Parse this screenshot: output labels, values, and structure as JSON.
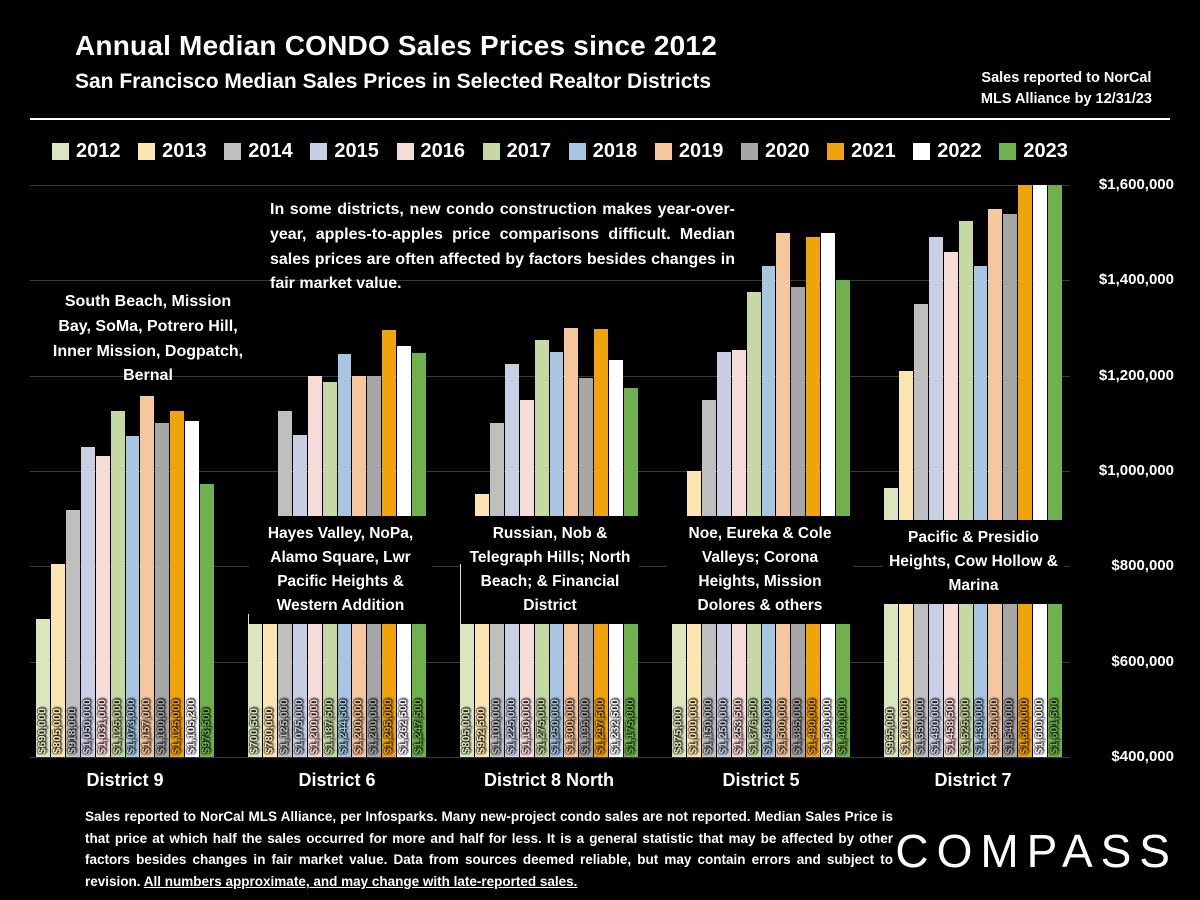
{
  "header": {
    "title": "Annual Median CONDO Sales Prices since 2012",
    "subtitle": "San Francisco Median Sales Prices in Selected Realtor Districts",
    "note_line1": "Sales reported to NorCal",
    "note_line2": "MLS Alliance by 12/31/23"
  },
  "chart_data": {
    "type": "bar",
    "title": "Annual Median CONDO Sales Prices since 2012",
    "subtitle": "San Francisco Median Sales Prices in Selected Realtor Districts",
    "ylim": [
      400000,
      1600000
    ],
    "ytick_step": 200000,
    "yticks_top_to_bottom": [
      "$1,600,000",
      "$1,400,000",
      "$1,200,000",
      "$1,000,000",
      "$800,000",
      "$600,000",
      "$400,000"
    ],
    "legend_position": "top",
    "grid": true,
    "series_years": [
      "2012",
      "2013",
      "2014",
      "2015",
      "2016",
      "2017",
      "2018",
      "2019",
      "2020",
      "2021",
      "2022",
      "2023"
    ],
    "series_colors": [
      "#dce6be",
      "#fbe5b0",
      "#bfbfbf",
      "#c9cfe3",
      "#f6dcd8",
      "#c6d8a4",
      "#a8c6e2",
      "#f6c69d",
      "#a6a6a6",
      "#f0a30a",
      "#ffffff",
      "#6fb14c"
    ],
    "groups": [
      {
        "district": "District 9",
        "values": [
          690000,
          805000,
          918000,
          1050000,
          1031000,
          1125000,
          1073000,
          1157000,
          1100000,
          1125000,
          1105200,
          973500
        ],
        "labels": [
          "$690,000",
          "$805,000",
          "$918,000",
          "$1,050,000",
          "$1,031,000",
          "$1,125,000",
          "$1,073,000",
          "$1,157,000",
          "$1,100,000",
          "$1,125,000",
          "$1,105,200",
          "$973,500"
        ]
      },
      {
        "district": "District 6",
        "values": [
          700500,
          780000,
          1125000,
          1075000,
          1200000,
          1187500,
          1244500,
          1200000,
          1200000,
          1295000,
          1262500,
          1247500
        ],
        "labels": [
          "$700,500",
          "$780,000",
          "$1,125,000",
          "$1,075,000",
          "$1,200,000",
          "$1,187,500",
          "$1,244,500",
          "$1,200,000",
          "$1,200,000",
          "$1,295,000",
          "$1,262,500",
          "$1,247,500"
        ]
      },
      {
        "district": "District 8 North",
        "values": [
          805000,
          952500,
          1100000,
          1225000,
          1150000,
          1275000,
          1250000,
          1300000,
          1195000,
          1297500,
          1232500,
          1175000
        ],
        "labels": [
          "$805,000",
          "$952,500",
          "$1,100,000",
          "$1,225,000",
          "$1,150,000",
          "$1,275,000",
          "$1,250,000",
          "$1,300,000",
          "$1,195,000",
          "$1,297,500",
          "$1,232,500",
          "$1,175,000"
        ]
      },
      {
        "district": "District 5",
        "values": [
          875000,
          1000000,
          1150000,
          1250000,
          1253500,
          1376500,
          1430000,
          1500000,
          1385000,
          1490000,
          1500000,
          1400000
        ],
        "labels": [
          "$875,000",
          "$1,000,000",
          "$1,150,000",
          "$1,250,000",
          "$1,253,500",
          "$1,376,500",
          "$1,430,000",
          "$1,500,000",
          "$1,385,000",
          "$1,490,000",
          "$1,500,000",
          "$1,400,000"
        ]
      },
      {
        "district": "District 7",
        "values": [
          965000,
          1210000,
          1350000,
          1490000,
          1458500,
          1525000,
          1430000,
          1550000,
          1540000,
          1600000,
          1600000,
          1601500
        ],
        "labels": [
          "$965,000",
          "$1,210,000",
          "$1,350,000",
          "$1,490,000",
          "$1,458,500",
          "$1,525,000",
          "$1,430,000",
          "$1,550,000",
          "$1,540,000",
          "$1,600,000",
          "$1,600,000",
          "$1,601,500"
        ]
      }
    ]
  },
  "annotations": {
    "construction_note": "In some districts, new condo construction makes year-over-year, apples-to-apples price comparisons difficult. Median sales prices are often affected by factors besides changes in fair market value.",
    "district9_areas": "South Beach, Mission Bay, SoMa, Potrero Hill, Inner Mission, Dogpatch, Bernal",
    "district6_areas": "Hayes Valley, NoPa, Alamo Square, Lwr Pacific Heights & Western Addition",
    "district8n_areas": "Russian, Nob & Telegraph Hills; North Beach; & Financial District",
    "district5_areas": "Noe, Eureka & Cole Valleys; Corona Heights, Mission Dolores & others",
    "district7_areas": "Pacific & Presidio Heights, Cow Hollow & Marina"
  },
  "footer": {
    "disclaimer": "Sales reported to NorCal MLS Alliance, per Infosparks. Many new-project condo sales are not reported. Median Sales Price is that price at which half the sales occurred for more and half for less. It is a general statistic that may be affected by other factors besides changes in fair market value. Data from sources deemed reliable, but may contain errors and subject to revision. ",
    "disclaimer_underlined": "All numbers approximate, and may change with late-reported sales.",
    "logo": "COMPASS"
  }
}
